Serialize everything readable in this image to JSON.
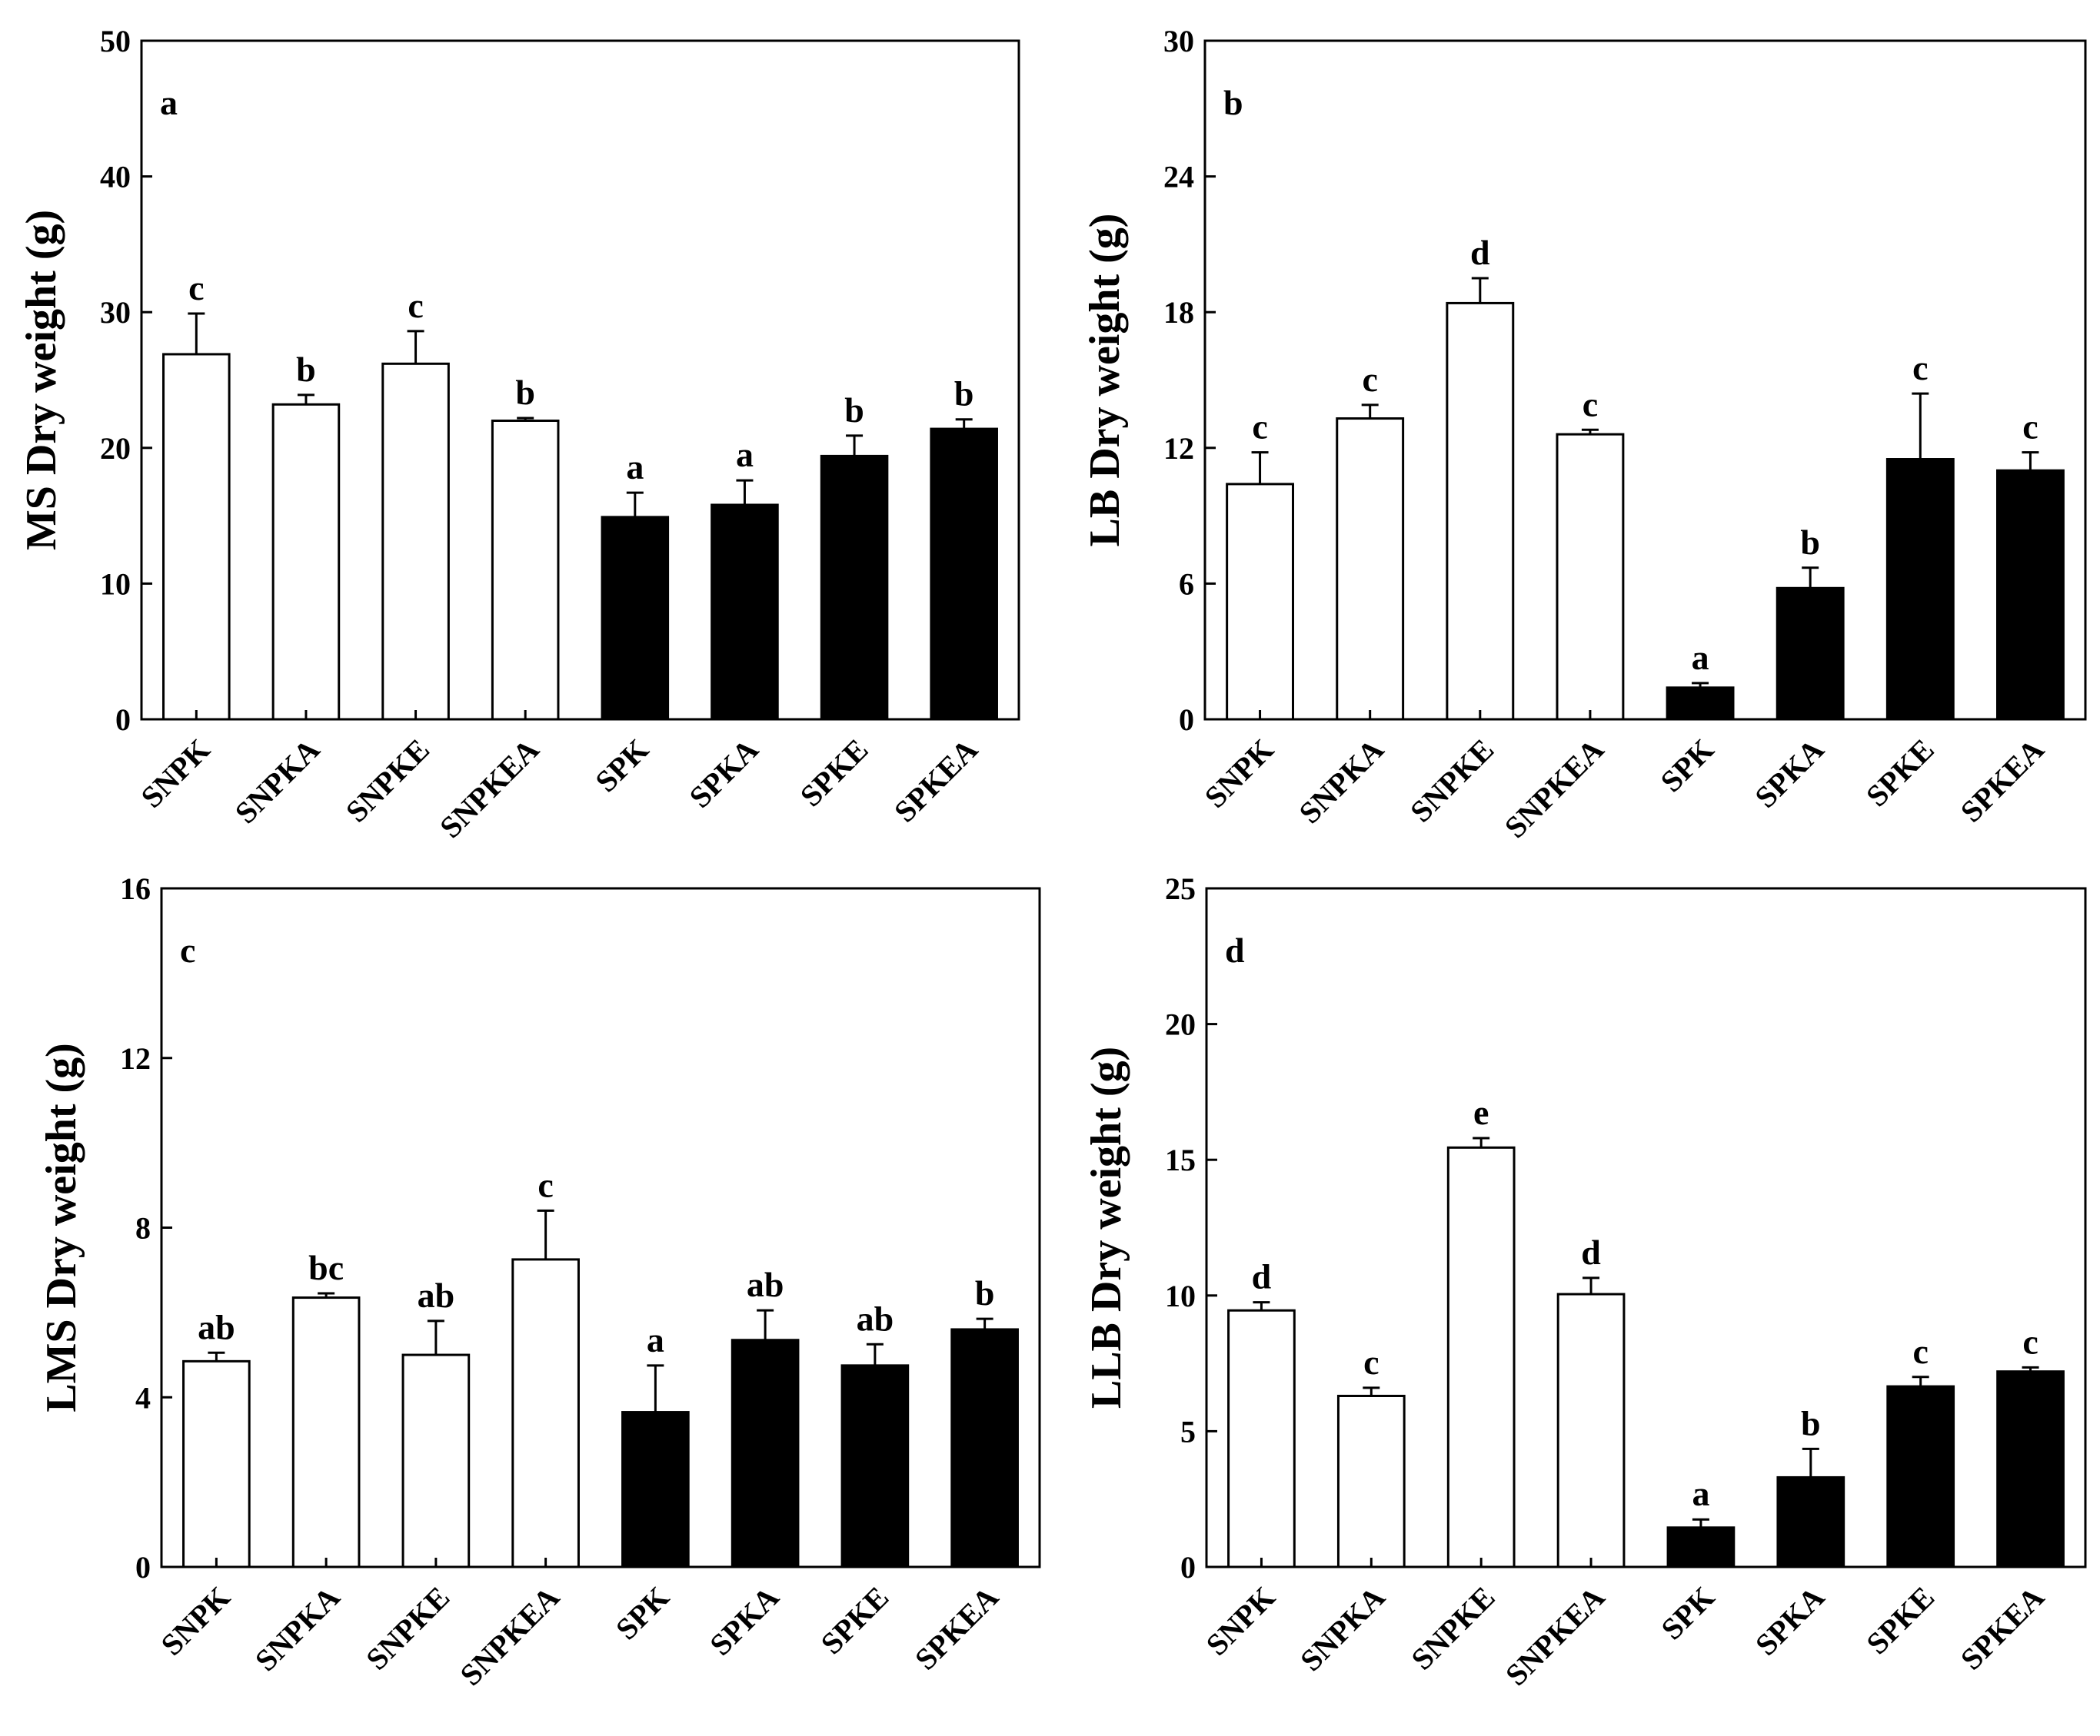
{
  "chart_data": [
    {
      "type": "bar",
      "panel": "a",
      "ylabel": "MS Dry weight (g)",
      "ylim": [
        0,
        50
      ],
      "yticks": [
        0,
        10,
        20,
        30,
        40,
        50
      ],
      "categories": [
        "SNPK",
        "SNPKA",
        "SNPKE",
        "SNPKEA",
        "SPK",
        "SPKA",
        "SPKE",
        "SPKEA"
      ],
      "values": [
        26.9,
        23.2,
        26.2,
        22.0,
        14.9,
        15.8,
        19.4,
        21.4
      ],
      "errors": [
        3.0,
        0.7,
        2.4,
        0.2,
        1.8,
        1.8,
        1.5,
        0.7
      ],
      "sig_labels": [
        "c",
        "b",
        "c",
        "b",
        "a",
        "a",
        "b",
        "b"
      ],
      "fill": [
        "white",
        "white",
        "white",
        "white",
        "black",
        "black",
        "black",
        "black"
      ]
    },
    {
      "type": "bar",
      "panel": "b",
      "ylabel": "LB Dry weight (g)",
      "ylim": [
        0,
        30
      ],
      "yticks": [
        0,
        6,
        12,
        18,
        24,
        30
      ],
      "categories": [
        "SNPK",
        "SNPKA",
        "SNPKE",
        "SNPKEA",
        "SPK",
        "SPKA",
        "SPKE",
        "SPKEA"
      ],
      "values": [
        10.4,
        13.3,
        18.4,
        12.6,
        1.4,
        5.8,
        11.5,
        11.0
      ],
      "errors": [
        1.4,
        0.6,
        1.1,
        0.2,
        0.2,
        0.9,
        2.9,
        0.8
      ],
      "sig_labels": [
        "c",
        "c",
        "d",
        "c",
        "a",
        "b",
        "c",
        "c"
      ],
      "fill": [
        "white",
        "white",
        "white",
        "white",
        "black",
        "black",
        "black",
        "black"
      ]
    },
    {
      "type": "bar",
      "panel": "c",
      "ylabel": "LMS Dry weight (g)",
      "ylim": [
        0,
        16
      ],
      "yticks": [
        0,
        4,
        8,
        12,
        16
      ],
      "categories": [
        "SNPK",
        "SNPKA",
        "SNPKE",
        "SNPKEA",
        "SPK",
        "SPKA",
        "SPKE",
        "SPKEA"
      ],
      "values": [
        4.85,
        6.35,
        5.0,
        7.25,
        3.65,
        5.35,
        4.75,
        5.6
      ],
      "errors": [
        0.2,
        0.1,
        0.8,
        1.15,
        1.1,
        0.7,
        0.5,
        0.25
      ],
      "sig_labels": [
        "ab",
        "bc",
        "ab",
        "c",
        "a",
        "ab",
        "ab",
        "b"
      ],
      "fill": [
        "white",
        "white",
        "white",
        "white",
        "black",
        "black",
        "black",
        "black"
      ]
    },
    {
      "type": "bar",
      "panel": "d",
      "ylabel": "LLB Dry weight (g)",
      "ylim": [
        0,
        25
      ],
      "yticks": [
        0,
        5,
        10,
        15,
        20,
        25
      ],
      "categories": [
        "SNPK",
        "SNPKA",
        "SNPKE",
        "SNPKEA",
        "SPK",
        "SPKA",
        "SPKE",
        "SPKEA"
      ],
      "values": [
        9.45,
        6.3,
        15.45,
        10.05,
        1.45,
        3.3,
        6.65,
        7.2
      ],
      "errors": [
        0.3,
        0.3,
        0.35,
        0.6,
        0.3,
        1.05,
        0.35,
        0.15
      ],
      "sig_labels": [
        "d",
        "c",
        "e",
        "d",
        "a",
        "b",
        "c",
        "c"
      ],
      "fill": [
        "white",
        "white",
        "white",
        "white",
        "black",
        "black",
        "black",
        "black"
      ]
    }
  ]
}
